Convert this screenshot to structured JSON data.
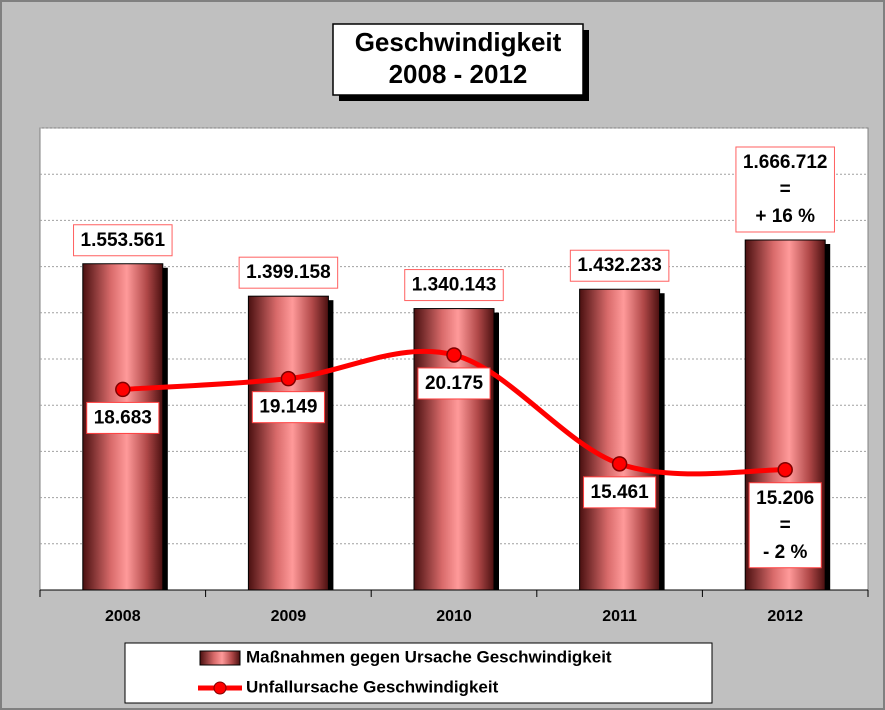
{
  "chart_data": {
    "type": "bar-line",
    "title": "Geschwindigkeit",
    "subtitle": "2008 - 2012",
    "categories": [
      "2008",
      "2009",
      "2010",
      "2011",
      "2012"
    ],
    "ylim": [
      0,
      2200000
    ],
    "yticks": [
      0,
      220000,
      440000,
      660000,
      880000,
      1100000,
      1320000,
      1540000,
      1760000,
      1980000,
      2200000
    ],
    "y2lim": [
      10000,
      30000
    ],
    "grid": true,
    "legend": "bottom",
    "series": [
      {
        "name": "Maßnahmen gegen Ursache Geschwindigkeit",
        "type": "bar",
        "color": "#f08080",
        "values": [
          1553561,
          1399158,
          1340143,
          1432233,
          1666712
        ],
        "value_labels": [
          "1.553.561",
          "1.399.158",
          "1.340.143",
          "1.432.233",
          "1.666.712"
        ],
        "note": [
          "=",
          "+ 16 %"
        ]
      },
      {
        "name": "Unfallursache Geschwindigkeit",
        "type": "line",
        "axis": "y2",
        "color": "#ff0000",
        "values": [
          18683,
          19149,
          20175,
          15461,
          15206
        ],
        "value_labels": [
          "18.683",
          "19.149",
          "20.175",
          "15.461",
          "15.206"
        ],
        "note": [
          "=",
          "- 2 %"
        ]
      }
    ]
  }
}
